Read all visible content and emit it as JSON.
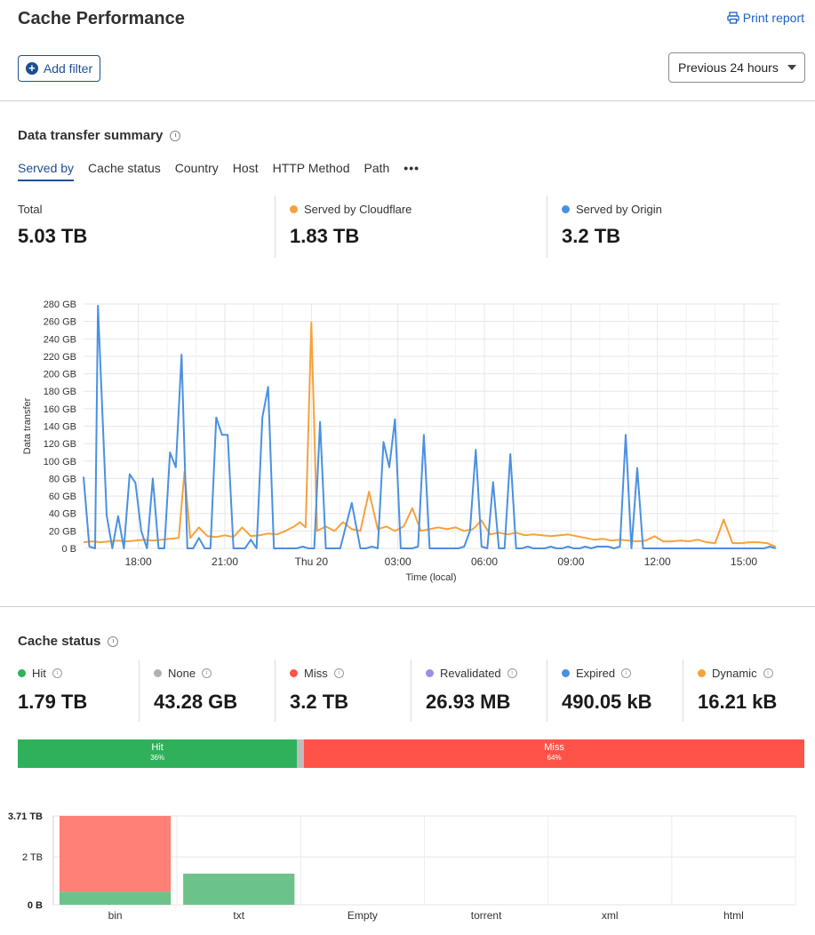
{
  "page": {
    "title": "Cache Performance",
    "print_label": "Print report",
    "add_filter_label": "Add filter",
    "time_range": "Previous 24 hours"
  },
  "transfer": {
    "title": "Data transfer summary",
    "tabs": [
      "Served by",
      "Cache status",
      "Country",
      "Host",
      "HTTP Method",
      "Path"
    ],
    "more_icon": "more-horizontal-icon",
    "stats": [
      {
        "label": "Total",
        "value": "5.03 TB",
        "color": ""
      },
      {
        "label": "Served by Cloudflare",
        "value": "1.83 TB",
        "color": "#f6a23c"
      },
      {
        "label": "Served by Origin",
        "value": "3.2 TB",
        "color": "#4a90e2"
      }
    ]
  },
  "chart_data": [
    {
      "type": "line",
      "xlabel": "Time (local)",
      "ylabel": "Data transfer",
      "yticks": [
        "0 B",
        "20 GB",
        "40 GB",
        "60 GB",
        "80 GB",
        "100 GB",
        "120 GB",
        "140 GB",
        "160 GB",
        "180 GB",
        "200 GB",
        "220 GB",
        "240 GB",
        "260 GB",
        "280 GB"
      ],
      "ylim": [
        0,
        280
      ],
      "xticks": [
        {
          "label": "18:00",
          "t": 6
        },
        {
          "label": "21:00",
          "t": 9
        },
        {
          "label": "Thu 20",
          "t": 12
        },
        {
          "label": "03:00",
          "t": 15
        },
        {
          "label": "06:00",
          "t": 18
        },
        {
          "label": "09:00",
          "t": 21
        },
        {
          "label": "12:00",
          "t": 24
        },
        {
          "label": "15:00",
          "t": 27
        }
      ],
      "xlim": [
        4.1,
        28.2
      ],
      "series": [
        {
          "name": "Served by Cloudflare",
          "color": "#f6a23c",
          "t": [
            4.1,
            4.4,
            4.7,
            5.0,
            5.3,
            5.6,
            5.9,
            6.2,
            6.5,
            6.8,
            7.1,
            7.4,
            7.6,
            7.8,
            8.1,
            8.4,
            8.7,
            9.0,
            9.3,
            9.6,
            9.9,
            10.2,
            10.5,
            10.8,
            11.1,
            11.4,
            11.6,
            11.8,
            12.0,
            12.2,
            12.5,
            12.8,
            13.1,
            13.4,
            13.7,
            14.0,
            14.3,
            14.6,
            14.9,
            15.2,
            15.5,
            15.8,
            16.1,
            16.4,
            16.7,
            17.0,
            17.3,
            17.6,
            17.9,
            18.2,
            18.5,
            18.8,
            19.1,
            19.4,
            19.7,
            20.0,
            20.3,
            20.6,
            20.9,
            21.2,
            21.5,
            21.8,
            22.1,
            22.4,
            22.7,
            23.0,
            23.3,
            23.6,
            23.9,
            24.2,
            24.5,
            24.8,
            25.1,
            25.4,
            25.7,
            26.0,
            26.3,
            26.6,
            26.9,
            27.2,
            27.5,
            27.8,
            28.1
          ],
          "values": [
            7,
            8,
            7,
            8,
            9,
            8,
            9,
            10,
            9,
            10,
            11,
            12,
            88,
            12,
            24,
            14,
            13,
            15,
            13,
            24,
            14,
            15,
            17,
            16,
            20,
            25,
            30,
            24,
            259,
            20,
            25,
            20,
            30,
            22,
            20,
            65,
            22,
            25,
            20,
            25,
            46,
            20,
            22,
            24,
            22,
            24,
            20,
            22,
            32,
            16,
            18,
            16,
            18,
            15,
            16,
            15,
            14,
            15,
            16,
            14,
            12,
            10,
            11,
            9,
            10,
            9,
            8,
            9,
            14,
            8,
            8,
            9,
            8,
            10,
            7,
            6,
            33,
            6,
            6,
            7,
            7,
            6,
            2
          ]
        },
        {
          "name": "Served by Origin",
          "color": "#4a90e2",
          "t": [
            4.1,
            4.3,
            4.5,
            4.6,
            4.9,
            5.1,
            5.3,
            5.5,
            5.7,
            5.9,
            6.1,
            6.3,
            6.5,
            6.7,
            6.9,
            7.1,
            7.3,
            7.5,
            7.7,
            7.9,
            8.1,
            8.3,
            8.5,
            8.7,
            8.9,
            9.1,
            9.3,
            9.5,
            9.7,
            9.9,
            10.1,
            10.3,
            10.5,
            10.7,
            10.9,
            11.1,
            11.3,
            11.5,
            11.7,
            11.9,
            12.1,
            12.3,
            12.5,
            13.0,
            13.4,
            13.7,
            13.9,
            14.1,
            14.3,
            14.5,
            14.7,
            14.9,
            15.1,
            15.3,
            15.5,
            15.7,
            15.9,
            16.1,
            16.3,
            16.5,
            16.7,
            16.9,
            17.1,
            17.3,
            17.5,
            17.7,
            17.9,
            18.1,
            18.3,
            18.5,
            18.7,
            18.9,
            19.1,
            19.3,
            19.5,
            19.7,
            19.9,
            20.1,
            20.3,
            20.5,
            20.7,
            20.9,
            21.1,
            21.3,
            21.5,
            21.7,
            21.9,
            22.1,
            22.3,
            22.5,
            22.7,
            22.9,
            23.1,
            23.3,
            23.5,
            23.7,
            23.9,
            24.1,
            24.3,
            24.5,
            24.7,
            24.9,
            25.1,
            25.3,
            25.5,
            25.7,
            25.9,
            26.1,
            26.3,
            26.5,
            26.7,
            26.9,
            27.1,
            27.3,
            27.5,
            27.7,
            27.9,
            28.1
          ],
          "values": [
            82,
            2,
            0,
            278,
            38,
            0,
            37,
            0,
            85,
            75,
            20,
            0,
            80,
            0,
            0,
            110,
            93,
            222,
            0,
            0,
            12,
            0,
            0,
            150,
            130,
            130,
            0,
            0,
            0,
            10,
            0,
            150,
            185,
            0,
            0,
            0,
            0,
            0,
            2,
            0,
            0,
            145,
            0,
            0,
            52,
            0,
            0,
            2,
            0,
            122,
            93,
            148,
            0,
            0,
            0,
            2,
            130,
            0,
            0,
            0,
            0,
            0,
            0,
            2,
            20,
            113,
            2,
            0,
            76,
            0,
            0,
            108,
            0,
            0,
            2,
            0,
            0,
            0,
            2,
            0,
            0,
            2,
            0,
            0,
            2,
            0,
            2,
            2,
            2,
            0,
            2,
            130,
            0,
            92,
            0,
            0,
            0,
            0,
            0,
            0,
            0,
            0,
            0,
            0,
            0,
            0,
            0,
            0,
            0,
            0,
            0,
            0,
            0,
            0,
            0,
            0,
            2,
            0
          ]
        }
      ]
    },
    {
      "type": "bar",
      "stacked": true,
      "categories": [
        "bin",
        "txt",
        "Empty",
        "torrent",
        "xml",
        "html"
      ],
      "yticks": [
        "0 B",
        "2 TB",
        "3.71 TB"
      ],
      "ytick_values": [
        0,
        2,
        3.71
      ],
      "ylim": [
        0,
        3.71
      ],
      "series": [
        {
          "name": "Hit",
          "color": "#6cc38a",
          "values": [
            0.55,
            1.3,
            0,
            0,
            0,
            0
          ]
        },
        {
          "name": "Miss",
          "color": "#ff8077",
          "values": [
            3.16,
            0,
            0,
            0,
            0,
            0
          ]
        }
      ]
    }
  ],
  "cache": {
    "title": "Cache status",
    "stats": [
      {
        "label": "Hit",
        "value": "1.79 TB",
        "color": "#2eb15a"
      },
      {
        "label": "None",
        "value": "43.28 GB",
        "color": "#b0b0b0"
      },
      {
        "label": "Miss",
        "value": "3.2 TB",
        "color": "#ff5349"
      },
      {
        "label": "Revalidated",
        "value": "26.93 MB",
        "color": "#9b8de8"
      },
      {
        "label": "Expired",
        "value": "490.05 kB",
        "color": "#4a90e2"
      },
      {
        "label": "Dynamic",
        "value": "16.21 kB",
        "color": "#f6a23c"
      }
    ],
    "bar": [
      {
        "label": "Hit",
        "pct": "36%",
        "fraction": 0.355,
        "color": "#2eb15a"
      },
      {
        "label": "",
        "pct": "",
        "fraction": 0.009,
        "color": "#bdbdbd"
      },
      {
        "label": "Miss",
        "pct": "64%",
        "fraction": 0.636,
        "color": "#ff5349"
      }
    ]
  }
}
